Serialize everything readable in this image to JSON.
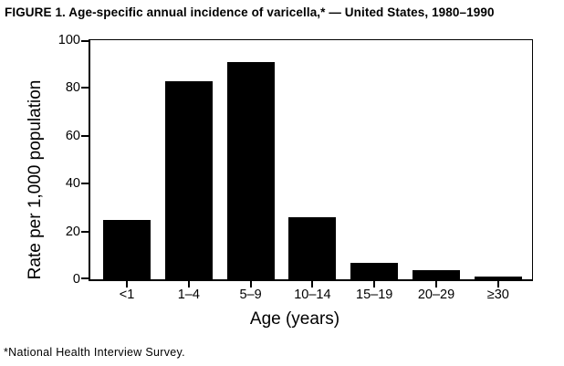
{
  "figure": {
    "title": "FIGURE 1. Age-specific annual incidence of varicella,* — United States, 1980–1990",
    "footnote": "*National Health Interview Survey."
  },
  "chart_data": {
    "type": "bar",
    "title": "FIGURE 1. Age-specific annual incidence of varicella,* — United States, 1980–1990",
    "categories": [
      "<1",
      "1–4",
      "5–9",
      "10–14",
      "15–19",
      "20–29",
      "≥30"
    ],
    "values": [
      25,
      83,
      91,
      26,
      7,
      4,
      1
    ],
    "xlabel": "Age (years)",
    "ylabel": "Rate per 1,000 population",
    "ylim": [
      0,
      100
    ],
    "yticks": [
      0,
      20,
      40,
      60,
      80,
      100
    ],
    "bar_color": "#000000",
    "background_color": "#ffffff",
    "grid": false,
    "legend": false,
    "frame": "full-box",
    "footnote": "*National Health Interview Survey."
  }
}
